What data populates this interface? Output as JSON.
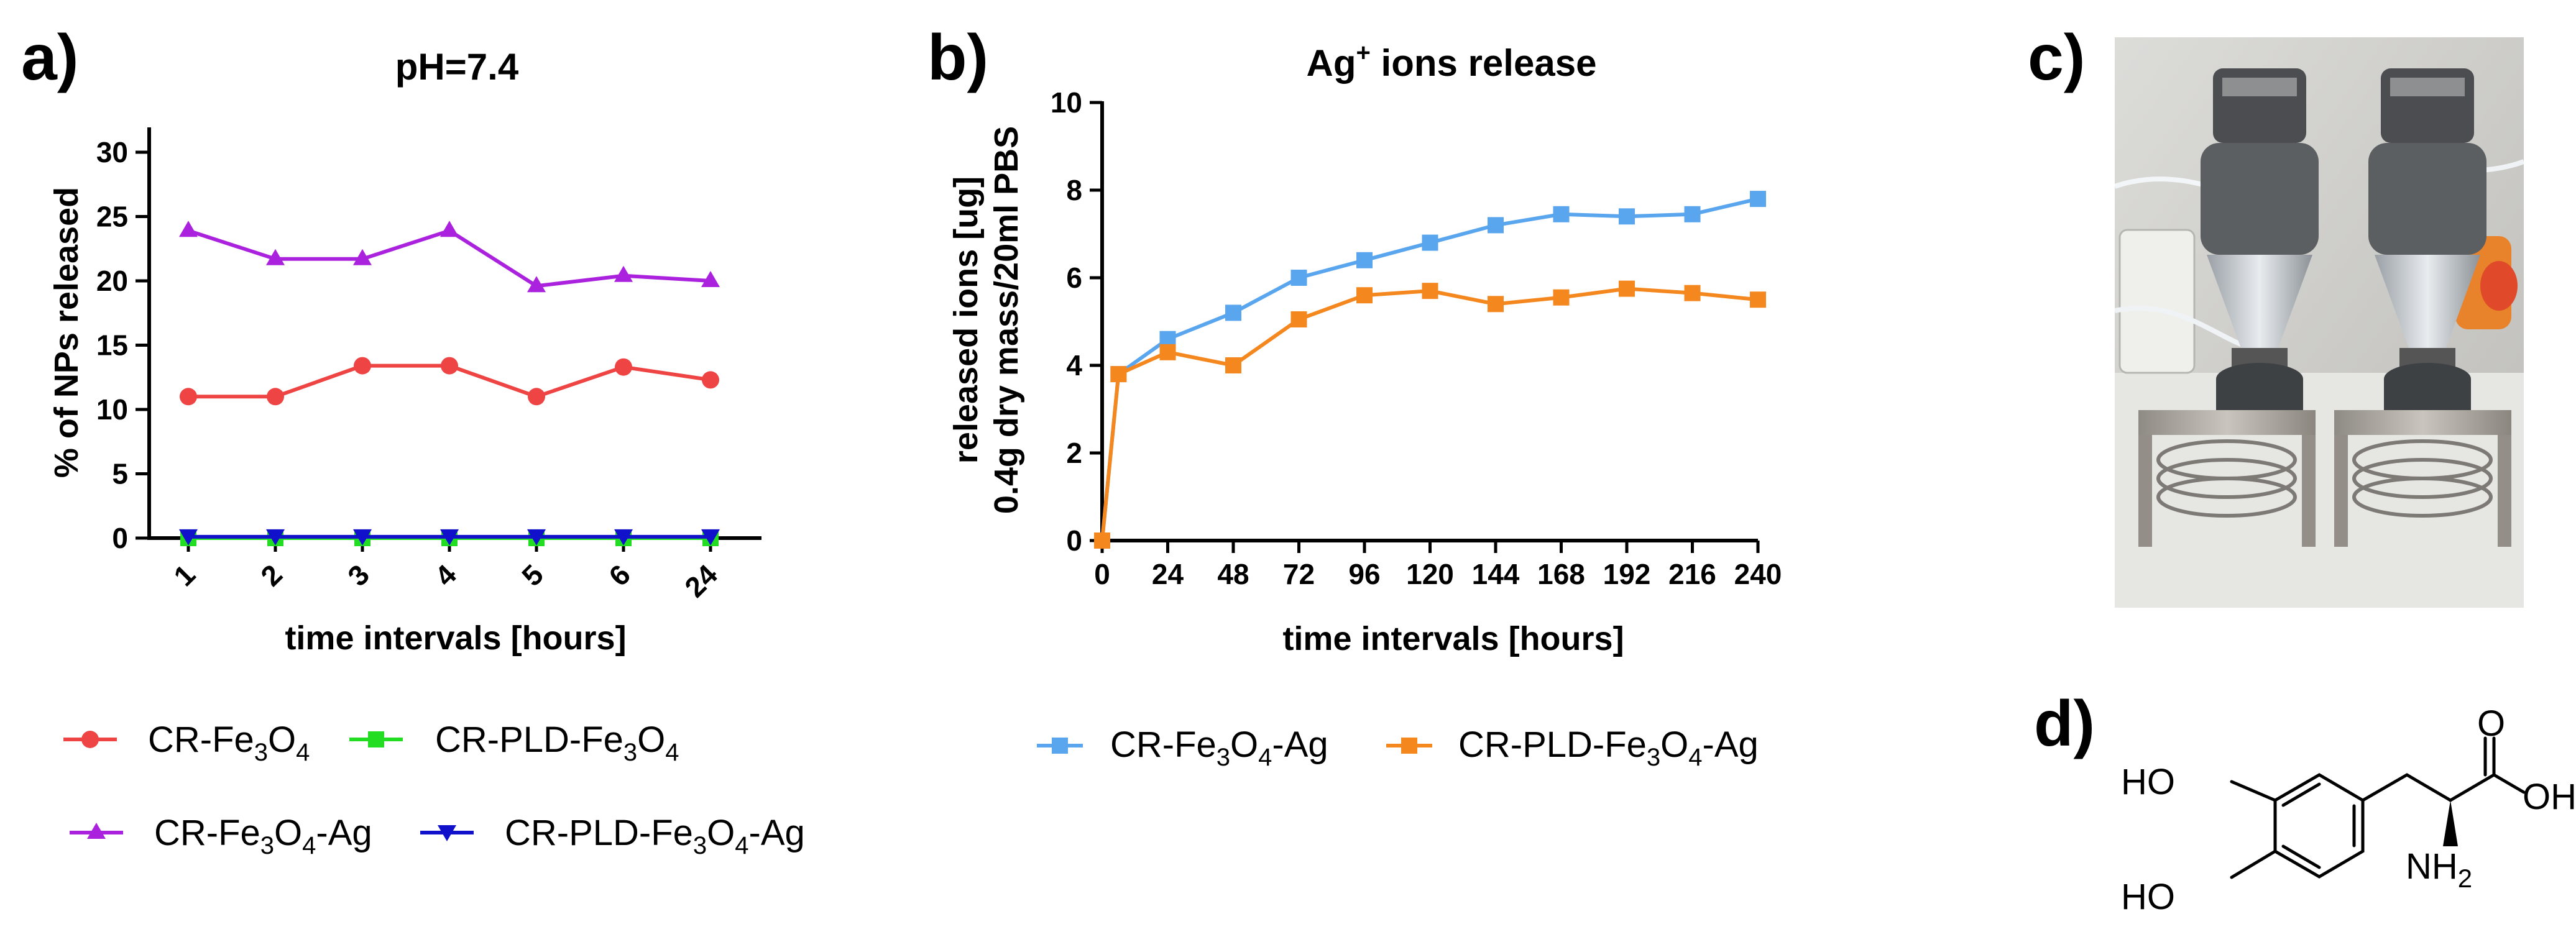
{
  "panels": {
    "a": "a)",
    "b": "b)",
    "c": "c)",
    "d": "d)"
  },
  "chart_data": [
    {
      "type": "line",
      "title": "pH=7.4",
      "xlabel": "time intervals [hours]",
      "ylabel": "% of NPs released",
      "categories": [
        "1",
        "2",
        "3",
        "4",
        "5",
        "6",
        "24"
      ],
      "ylim": [
        0,
        30
      ],
      "yticks": [
        0,
        5,
        10,
        15,
        20,
        25,
        30
      ],
      "grid": false,
      "legend_position": "below",
      "series": [
        {
          "name": "CR-Fe3O4",
          "color": "#ee4444",
          "marker": "circle",
          "values": [
            11,
            11,
            13.4,
            13.4,
            11,
            13.3,
            12.3
          ]
        },
        {
          "name": "CR-PLD-Fe3O4",
          "color": "#22dd22",
          "marker": "square",
          "values": [
            0,
            0,
            0,
            0,
            0,
            0,
            0
          ]
        },
        {
          "name": "CR-Fe3O4-Ag",
          "color": "#aa22dd",
          "marker": "triangle-up",
          "values": [
            23.9,
            21.7,
            21.7,
            23.9,
            19.6,
            20.4,
            20
          ]
        },
        {
          "name": "CR-PLD-Fe3O4-Ag",
          "color": "#1111cc",
          "marker": "triangle-down",
          "values": [
            0.1,
            0.1,
            0.1,
            0.1,
            0.1,
            0.1,
            0.1
          ]
        }
      ]
    },
    {
      "type": "line",
      "title": "Ag+ ions release",
      "xlabel": "time intervals [hours]",
      "ylabel_line1": "released ions [ug]",
      "ylabel_line2": "0.4g dry mass/20ml PBS",
      "xlim": [
        0,
        240
      ],
      "xticks": [
        0,
        24,
        48,
        72,
        96,
        120,
        144,
        168,
        192,
        216,
        240
      ],
      "ylim": [
        0,
        10
      ],
      "yticks": [
        0,
        2,
        4,
        6,
        8,
        10
      ],
      "grid": false,
      "legend_position": "below",
      "series": [
        {
          "name": "CR-Fe3O4-Ag",
          "color": "#5aa6ee",
          "marker": "square",
          "x": [
            0,
            6,
            24,
            48,
            72,
            96,
            120,
            144,
            168,
            192,
            216,
            240
          ],
          "values": [
            0,
            3.8,
            4.6,
            5.2,
            6.0,
            6.4,
            6.8,
            7.2,
            7.45,
            7.4,
            7.45,
            7.8
          ]
        },
        {
          "name": "CR-PLD-Fe3O4-Ag",
          "color": "#f5871f",
          "marker": "square",
          "x": [
            0,
            6,
            24,
            48,
            72,
            96,
            120,
            144,
            168,
            192,
            216,
            240
          ],
          "values": [
            0,
            3.8,
            4.3,
            4.0,
            5.05,
            5.6,
            5.7,
            5.4,
            5.55,
            5.75,
            5.65,
            5.5
          ]
        }
      ]
    }
  ],
  "chemical": {
    "name": "L-DOPA",
    "labels": {
      "ho_top": "HO",
      "ho_bottom": "HO",
      "oxygen": "O",
      "oh": "OH",
      "amine": "NH2"
    }
  },
  "colors": {
    "photo_background": "#c9c9c6",
    "device_body": "#5c5f62",
    "steel_base": "#a6a29c"
  }
}
